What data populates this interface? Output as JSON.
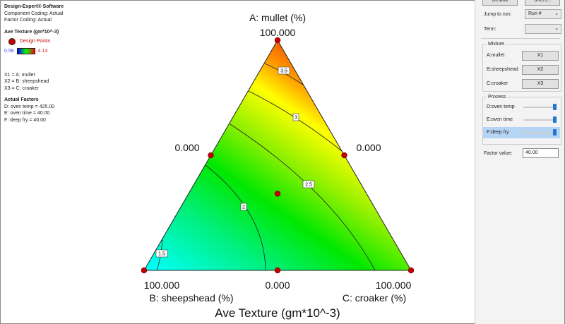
{
  "legend": {
    "software": "Design-Expert® Software",
    "component_coding": "Component Coding: Actual",
    "factor_coding": "Factor Coding: Actual",
    "response": "Ave Texture (gm*10^-3)",
    "design_points": "Design Points",
    "scale_min": "0.58",
    "scale_max": "4.13",
    "x1": "X1 = A: mullet",
    "x2": "X2 = B: sheepshead",
    "x3": "X3 = C: croaker",
    "actual_factors_title": "Actual Factors",
    "factor_d": "D: oven temp = 425.00",
    "factor_e": "E: oven time = 40.00",
    "factor_f": "F: deep fry = 40.00"
  },
  "chart_data": {
    "type": "ternary-contour",
    "title": "A: mullet (%)",
    "xlabel": "Ave Texture (gm*10^-3)",
    "vertex_labels": {
      "top": "A: mullet (%)",
      "left": "B: sheepshead (%)",
      "right": "C: croaker (%)"
    },
    "tick_labels": {
      "top": "100.000",
      "left_edge": "0.000",
      "right_edge": "0.000",
      "left": "100.000",
      "bottom": "0.000",
      "right": "100.000"
    },
    "contour_levels": [
      "1.5",
      "2",
      "2.5",
      "3",
      "3.5"
    ],
    "color_range": [
      0.58,
      4.13
    ],
    "colors": {
      "low": "#00ffff",
      "mid": "#00e800",
      "high": "#f04000",
      "point": "#c00000"
    },
    "design_points": [
      {
        "A": 100,
        "B": 0,
        "C": 0
      },
      {
        "A": 0,
        "B": 100,
        "C": 0
      },
      {
        "A": 0,
        "B": 0,
        "C": 100
      },
      {
        "A": 50,
        "B": 50,
        "C": 0
      },
      {
        "A": 50,
        "B": 0,
        "C": 50
      },
      {
        "A": 0,
        "B": 50,
        "C": 50
      },
      {
        "A": 33.3,
        "B": 33.3,
        "C": 33.3
      }
    ]
  },
  "panel": {
    "default_btn": "Default",
    "sheet_btn": "Sheet...",
    "jump_label": "Jump to run:",
    "jump_value": "Run #",
    "term_label": "Term:",
    "term_value": "",
    "mixture_title": "Mixture",
    "mixture": [
      {
        "label": "A:mullet",
        "button": "X1"
      },
      {
        "label": "B:sheepshead",
        "button": "X2"
      },
      {
        "label": "C:croaker",
        "button": "X3"
      }
    ],
    "process_title": "Process",
    "process": [
      {
        "label": "D:oven temp",
        "level": 1.0
      },
      {
        "label": "E:oven time",
        "level": 1.0
      },
      {
        "label": "F:deep fry",
        "level": 1.0
      }
    ],
    "factor_value_label": "Factor value:",
    "factor_value": "40.00"
  }
}
